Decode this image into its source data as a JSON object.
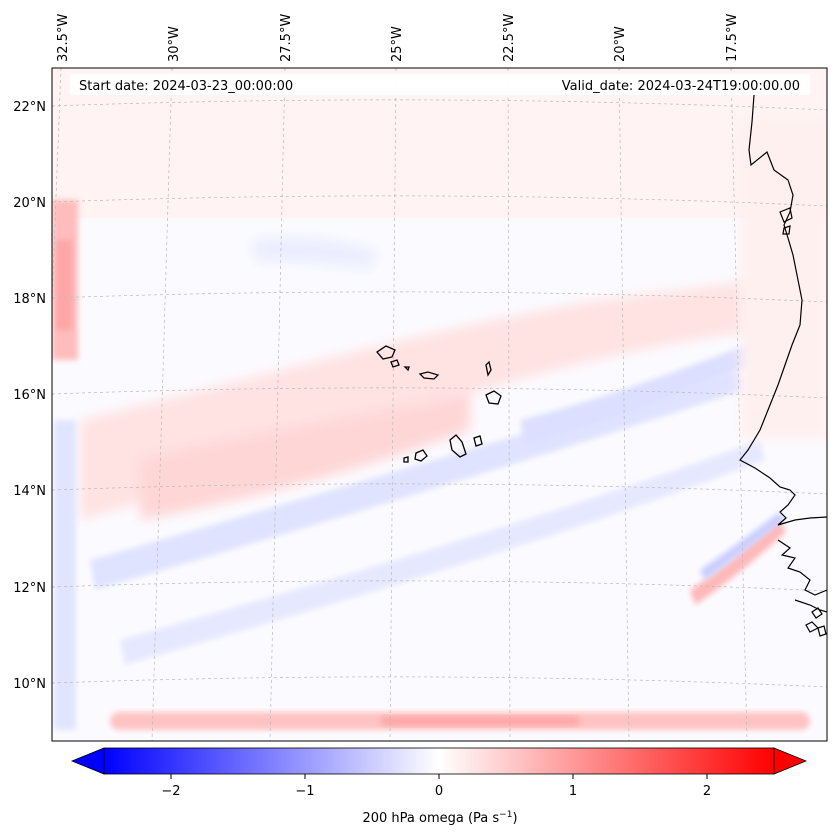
{
  "header": {
    "start_date": "Start date: 2024-03-23_00:00:00",
    "valid_date": "Valid_date: 2024-03-24T19:00:00.00"
  },
  "lon_labels": [
    "32.5°W",
    "30°W",
    "27.5°W",
    "25°W",
    "22.5°W",
    "20°W",
    "17.5°W"
  ],
  "lat_labels": [
    "22°N",
    "20°N",
    "18°N",
    "16°N",
    "14°N",
    "12°N",
    "10°N"
  ],
  "colorbar": {
    "tick_labels": [
      "−2",
      "−1",
      "0",
      "1",
      "2"
    ],
    "variable_label": "200 hPa omega (Pa s",
    "unit_superscript": "−1",
    "closing": ")",
    "range": [
      -2.6,
      2.6
    ],
    "colors": {
      "negative": "#0000ff",
      "zero": "#ffffff",
      "positive": "#ff0000"
    }
  },
  "field": {
    "name": "200 hPa omega",
    "coastline_color": "#000000",
    "gridline_color": "#b0b0b0"
  }
}
